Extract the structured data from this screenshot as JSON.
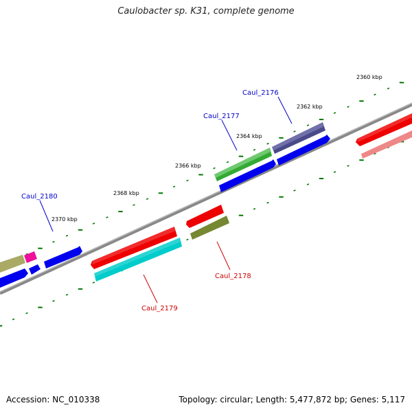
{
  "title": "Caulobacter sp. K31, complete genome",
  "footer": {
    "accession": "Accession: NC_010338",
    "stats": "Topology: circular; Length: 5,477,872 bp; Genes: 5,117"
  },
  "scale_labels": [
    "2360 kbp",
    "2362 kbp",
    "2364 kbp",
    "2366 kbp",
    "2368 kbp",
    "2370 kbp"
  ],
  "gene_labels": [
    {
      "text": "Caul_2176",
      "color": "#0000cc"
    },
    {
      "text": "Caul_2177",
      "color": "#0000cc"
    },
    {
      "text": "Caul_2180",
      "color": "#0000cc"
    },
    {
      "text": "Caul_2178",
      "color": "#cc0000"
    },
    {
      "text": "Caul_2179",
      "color": "#cc0000"
    }
  ],
  "colors": {
    "backbone": "#888888",
    "tick": "#007700",
    "blue": "#0000ee",
    "red": "#ee0000",
    "green": "#33aa33",
    "purple": "#4a4a8a",
    "cyan": "#00cccc",
    "olive": "#778833",
    "pink": "#ee8888",
    "magenta": "#ee1199",
    "khaki": "#aaaa66"
  }
}
